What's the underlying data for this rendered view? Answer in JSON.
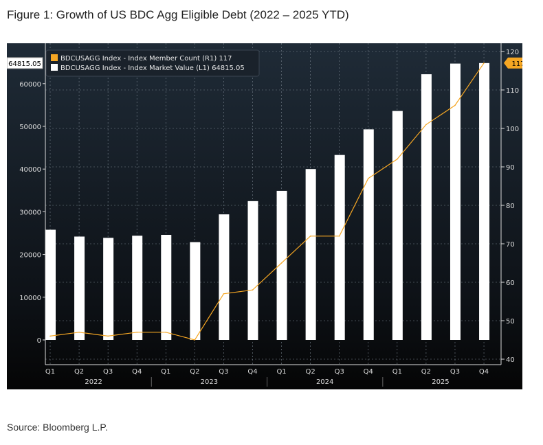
{
  "title": "Figure 1: Growth of US BDC Agg Eligible Debt (2022 – 2025 YTD)",
  "source": "Source: Bloomberg L.P.",
  "chart_data": {
    "type": "bar+line",
    "categories": [
      "Q1",
      "Q2",
      "Q3",
      "Q4",
      "Q1",
      "Q2",
      "Q3",
      "Q4",
      "Q1",
      "Q2",
      "Q3",
      "Q4",
      "Q1",
      "Q2",
      "Q3",
      "Q4"
    ],
    "years": [
      "2022",
      "2023",
      "2024",
      "2025"
    ],
    "series": [
      {
        "name": "BDCUSAGG Index - Index Market Value (L1)",
        "last": "64815.05",
        "type": "bar",
        "axis": "left",
        "color": "#ffffff",
        "values": [
          25800,
          24200,
          23900,
          24400,
          24600,
          22900,
          29400,
          32500,
          34900,
          40000,
          43300,
          49300,
          53600,
          62200,
          64700,
          64815.05
        ]
      },
      {
        "name": "BDCUSAGG Index - Index Member Count (R1)",
        "last": "117",
        "type": "line",
        "axis": "right",
        "color": "#f5a623",
        "values": [
          46,
          47,
          46,
          47,
          47,
          45,
          57,
          58,
          65,
          72,
          72,
          87,
          92,
          101,
          106,
          117
        ]
      }
    ],
    "left_axis": {
      "range": [
        -5000,
        68000
      ],
      "ticks": [
        "0",
        "10000",
        "20000",
        "30000",
        "40000",
        "50000",
        "60000"
      ],
      "current_label": "64815.05"
    },
    "right_axis": {
      "range": [
        39,
        122
      ],
      "ticks": [
        "40",
        "50",
        "60",
        "70",
        "80",
        "90",
        "100",
        "110",
        "120"
      ],
      "current_label": "117"
    },
    "grid": true,
    "legend_placement": "top-left",
    "colors": {
      "background_top": "#1f2b37",
      "background_bottom": "#050505",
      "line": "#f5a623",
      "bar": "#ffffff"
    }
  }
}
